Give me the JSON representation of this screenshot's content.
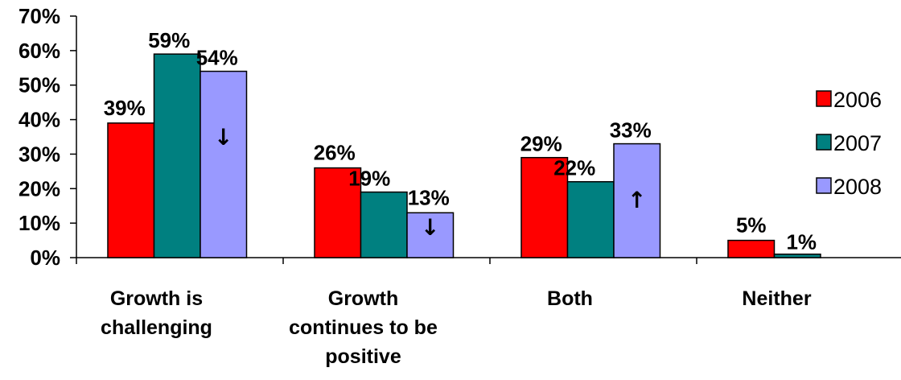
{
  "chart_data": {
    "type": "bar",
    "categories": [
      [
        "Growth is",
        "challenging"
      ],
      [
        "Growth",
        "continues to be",
        "positive"
      ],
      [
        "Both"
      ],
      [
        "Neither"
      ]
    ],
    "series": [
      {
        "name": "2006",
        "color": "#ff0000",
        "values": [
          39,
          26,
          29,
          5
        ],
        "labels": [
          "39%",
          "26%",
          "29%",
          "5%"
        ]
      },
      {
        "name": "2007",
        "color": "#008080",
        "values": [
          59,
          19,
          22,
          1
        ],
        "labels": [
          "59%",
          "19%",
          "22%",
          "1%"
        ]
      },
      {
        "name": "2008",
        "color": "#9999ff",
        "values": [
          54,
          13,
          33,
          null
        ],
        "labels": [
          "54%",
          "13%",
          "33%",
          ""
        ]
      }
    ],
    "y_ticks": [
      "0%",
      "10%",
      "20%",
      "30%",
      "40%",
      "50%",
      "60%",
      "70%"
    ],
    "ylim": [
      0,
      70
    ],
    "legend": "right",
    "grid": false,
    "annotations": [
      {
        "series": 2,
        "category": 0,
        "symbol": "↓"
      },
      {
        "series": 2,
        "category": 1,
        "symbol": "↓"
      },
      {
        "series": 2,
        "category": 2,
        "symbol": "↑"
      }
    ]
  }
}
